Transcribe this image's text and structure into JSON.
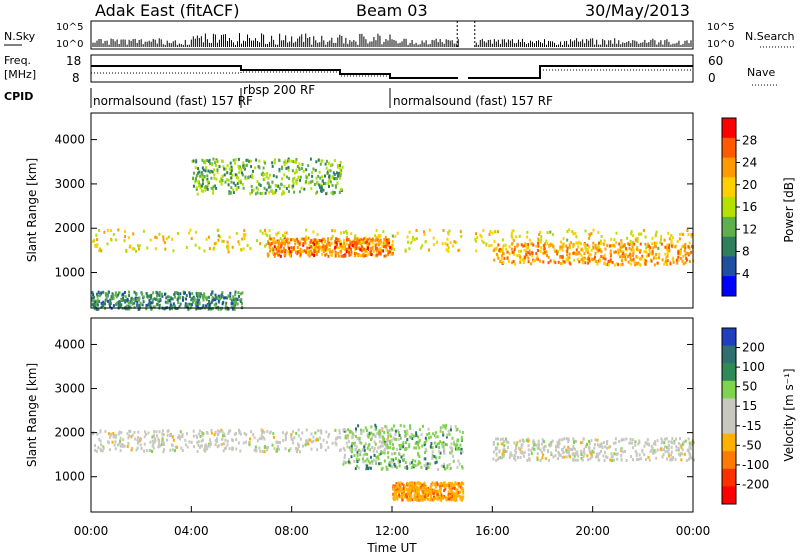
{
  "header": {
    "station": "Adak East (fitACF)",
    "beam": "Beam 03",
    "date": "30/May/2013"
  },
  "left_labels": {
    "nsky": "N.Sky",
    "freq_top": "Freq.",
    "freq_unit": "[MHz]",
    "cpid": "CPID"
  },
  "right_labels": {
    "nsearch": "N.Search",
    "nave": "Nave"
  },
  "noise_ticks_left": [
    "10^5",
    "10^0"
  ],
  "noise_ticks_right": [
    "10^5",
    "10^0"
  ],
  "freq_ticks": [
    "18",
    "8"
  ],
  "nave_ticks": [
    "60",
    "0"
  ],
  "cpid_segments": [
    {
      "label": "normalsound (fast) 157 RF",
      "start_hr": 0,
      "end_hr": 6
    },
    {
      "label": "rbsp 200 RF",
      "start_hr": 6,
      "end_hr": 12
    },
    {
      "label": "normalsound (fast) 157 RF",
      "start_hr": 12,
      "end_hr": 24
    }
  ],
  "x_ticks": [
    "00:00",
    "04:00",
    "08:00",
    "12:00",
    "16:00",
    "20:00",
    "00:00"
  ],
  "xlabel": "Time UT",
  "y_ticks": [
    "4000",
    "3000",
    "2000",
    "1000"
  ],
  "ylabel": "Slant Range [km]",
  "power_cbar": {
    "ticks": [
      "28",
      "24",
      "20",
      "16",
      "12",
      "8",
      "4"
    ],
    "label": "Power [dB]",
    "colors": [
      "#ff0000",
      "#ff5a00",
      "#ff9a00",
      "#ffd000",
      "#b5e000",
      "#5fb04a",
      "#2f7f5f",
      "#1f4fa0",
      "#0000ff"
    ]
  },
  "velocity_cbar": {
    "ticks": [
      "200",
      "100",
      "50",
      "15",
      "-15",
      "-50",
      "-100",
      "-200"
    ],
    "label": "Velocity [m s⁻¹]",
    "colors": [
      "#1f3fbf",
      "#2f6f6f",
      "#2e8b57",
      "#7fd34e",
      "#c8c8c0",
      "#c8c8c0",
      "#ffb000",
      "#ff7a00",
      "#ff3000",
      "#ff0000"
    ]
  },
  "chart_data": [
    {
      "type": "heatmap",
      "title": "Power",
      "xlabel": "Time UT",
      "ylabel": "Slant Range [km]",
      "xlim": [
        0,
        24
      ],
      "ylim": [
        200,
        4600
      ],
      "zlabel": "Power [dB]",
      "zlim": [
        0,
        30
      ],
      "bands": [
        {
          "t": [
            0,
            24
          ],
          "range_km": [
            1500,
            2000
          ],
          "power_db": 18
        },
        {
          "t": [
            7,
            12
          ],
          "range_km": [
            1400,
            1800
          ],
          "power_db": 24
        },
        {
          "t": [
            16,
            24
          ],
          "range_km": [
            1200,
            1700
          ],
          "power_db": 22
        },
        {
          "t": [
            0,
            6
          ],
          "range_km": [
            200,
            600
          ],
          "power_db": 8
        },
        {
          "t": [
            4,
            10
          ],
          "range_km": [
            2800,
            3600
          ],
          "power_db": 12
        }
      ]
    },
    {
      "type": "heatmap",
      "title": "Velocity",
      "xlabel": "Time UT",
      "ylabel": "Slant Range [km]",
      "xlim": [
        0,
        24
      ],
      "ylim": [
        200,
        4600
      ],
      "zlabel": "Velocity [m s⁻¹]",
      "zlim": [
        -250,
        250
      ],
      "bands": [
        {
          "t": [
            0,
            12
          ],
          "range_km": [
            1600,
            2100
          ],
          "velocity": 0
        },
        {
          "t": [
            16,
            24
          ],
          "range_km": [
            1400,
            1900
          ],
          "velocity": 0
        },
        {
          "t": [
            10,
            15
          ],
          "range_km": [
            1200,
            2200
          ],
          "velocity": 40
        },
        {
          "t": [
            12,
            15
          ],
          "range_km": [
            500,
            900
          ],
          "velocity": -60
        }
      ]
    }
  ]
}
